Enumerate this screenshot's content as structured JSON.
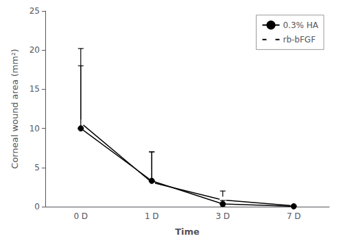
{
  "chart_data": {
    "type": "line",
    "xlabel": "Time",
    "ylabel": "Corneal wound area (mm²)",
    "categories": [
      "0 D",
      "1 D",
      "3 D",
      "7 D"
    ],
    "series": [
      {
        "name": "0.3% HA",
        "color": "black",
        "marker": "circle",
        "values": [
          10.0,
          3.3,
          0.35,
          0.05
        ],
        "yerr_low": [
          0.0,
          0.0,
          0.35,
          0.05
        ],
        "yerr_high": [
          8.0,
          3.7,
          0.45,
          0.0
        ]
      },
      {
        "name": "rb-bFGF",
        "color": "black",
        "marker": "emptyCircle",
        "values": [
          10.7,
          3.1,
          0.85,
          0.1
        ],
        "yerr_low": [
          0.0,
          0.0,
          0.5,
          0.1
        ],
        "yerr_high": [
          9.5,
          3.9,
          1.15,
          0.0
        ]
      }
    ],
    "ylim": [
      0,
      25
    ],
    "yticks": [
      0,
      5,
      10,
      15,
      20,
      25
    ],
    "grid": false,
    "legend": "upper right"
  }
}
